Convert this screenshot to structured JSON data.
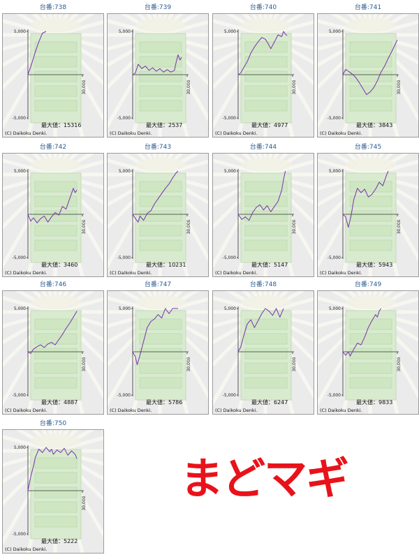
{
  "logo_text": "まどマギ",
  "colors": {
    "line": "#7a2fb0",
    "title": "#2a5b8f",
    "logo": "#e8121b",
    "panel_bg": "#ebebeb"
  },
  "axis": {
    "y_top_label": "5,000",
    "y_bottom_label": "-5,000",
    "x_right_label": "30,000"
  },
  "max_label_prefix": "最大値：",
  "copyright": "(C) Daikoku Denki.",
  "chart_data": [
    {
      "type": "line",
      "title": "台番:738",
      "max_value": 15316,
      "ylim": [
        -5000,
        5000
      ],
      "xlim": [
        0,
        30000
      ],
      "x": [
        0,
        2000,
        4000,
        6000,
        8000,
        10000
      ],
      "y": [
        0,
        1200,
        2600,
        3800,
        4800,
        5000
      ]
    },
    {
      "type": "line",
      "title": "台番:739",
      "max_value": 2537,
      "ylim": [
        -5000,
        5000
      ],
      "xlim": [
        0,
        30000
      ],
      "x": [
        0,
        1500,
        3000,
        5000,
        7000,
        9000,
        11000,
        13000,
        15000,
        17000,
        19000,
        21000,
        23000,
        24000,
        25000,
        26000,
        27000
      ],
      "y": [
        0,
        200,
        1200,
        700,
        1000,
        500,
        800,
        400,
        700,
        300,
        600,
        300,
        500,
        1500,
        2300,
        1700,
        2000
      ]
    },
    {
      "type": "line",
      "title": "台番:740",
      "max_value": 4977,
      "ylim": [
        -5000,
        5000
      ],
      "xlim": [
        0,
        30000
      ],
      "x": [
        0,
        1500,
        3000,
        5000,
        7000,
        9000,
        11000,
        13000,
        15000,
        16500,
        18000,
        20000,
        22000,
        24000,
        25000,
        26000,
        27000
      ],
      "y": [
        0,
        200,
        800,
        1500,
        2500,
        3200,
        3800,
        4300,
        4100,
        3600,
        3000,
        3800,
        4600,
        4400,
        5000,
        4700,
        4500
      ]
    },
    {
      "type": "line",
      "title": "台番:741",
      "max_value": 3843,
      "ylim": [
        -5000,
        5000
      ],
      "xlim": [
        0,
        30000
      ],
      "x": [
        0,
        1500,
        3000,
        5000,
        7000,
        9000,
        11000,
        13000,
        15000,
        17000,
        19000,
        21000,
        23000,
        25000,
        27000,
        29000,
        30000
      ],
      "y": [
        0,
        600,
        400,
        100,
        -300,
        -900,
        -1600,
        -2300,
        -2000,
        -1500,
        -700,
        300,
        1000,
        1900,
        2700,
        3600,
        4000
      ]
    },
    {
      "type": "line",
      "title": "台番:742",
      "max_value": 3460,
      "ylim": [
        -5000,
        5000
      ],
      "xlim": [
        0,
        30000
      ],
      "x": [
        0,
        1500,
        3000,
        5000,
        7000,
        9000,
        11000,
        13000,
        15000,
        17000,
        19000,
        21000,
        23000,
        25000,
        26000,
        27000
      ],
      "y": [
        0,
        -800,
        -400,
        -1000,
        -500,
        -200,
        -900,
        -300,
        200,
        -100,
        900,
        600,
        1800,
        3000,
        2500,
        2800
      ]
    },
    {
      "type": "line",
      "title": "台番:743",
      "max_value": 10231,
      "ylim": [
        -5000,
        5000
      ],
      "xlim": [
        0,
        30000
      ],
      "x": [
        0,
        1500,
        3000,
        4000,
        6000,
        8000,
        10000,
        12000,
        14000,
        16000,
        18000,
        20000,
        22000,
        24000,
        25000
      ],
      "y": [
        0,
        -500,
        -900,
        -200,
        -700,
        100,
        400,
        1200,
        1800,
        2400,
        3000,
        3500,
        4200,
        4800,
        5000
      ]
    },
    {
      "type": "line",
      "title": "台番:744",
      "max_value": 5147,
      "ylim": [
        -5000,
        5000
      ],
      "xlim": [
        0,
        30000
      ],
      "x": [
        0,
        2000,
        4000,
        6000,
        8000,
        10000,
        12000,
        14000,
        16000,
        18000,
        20000,
        22000,
        24000,
        25000,
        26000
      ],
      "y": [
        0,
        -600,
        -300,
        -700,
        200,
        800,
        1100,
        500,
        1000,
        300,
        900,
        1500,
        2800,
        4000,
        5000
      ]
    },
    {
      "type": "line",
      "title": "台番:745",
      "max_value": 5943,
      "ylim": [
        -5000,
        5000
      ],
      "xlim": [
        0,
        30000
      ],
      "x": [
        0,
        1500,
        3000,
        4500,
        6000,
        8000,
        10000,
        12000,
        14000,
        16000,
        18000,
        20000,
        22000,
        24000,
        25000
      ],
      "y": [
        0,
        -300,
        -1500,
        -200,
        1700,
        3000,
        2500,
        2900,
        2000,
        2300,
        2900,
        3700,
        3300,
        4500,
        5000
      ]
    },
    {
      "type": "line",
      "title": "台番:746",
      "max_value": 4887,
      "ylim": [
        -5000,
        5000
      ],
      "xlim": [
        0,
        30000
      ],
      "x": [
        0,
        1500,
        3000,
        5000,
        7000,
        9000,
        11000,
        13000,
        15000,
        17000,
        19000,
        21000,
        23000,
        25000,
        27000
      ],
      "y": [
        0,
        -200,
        300,
        600,
        800,
        500,
        900,
        1100,
        800,
        1400,
        2000,
        2700,
        3300,
        4000,
        4700
      ]
    },
    {
      "type": "line",
      "title": "台番:747",
      "max_value": 5786,
      "ylim": [
        -5000,
        5000
      ],
      "xlim": [
        0,
        30000
      ],
      "x": [
        0,
        1500,
        2500,
        4000,
        6000,
        8000,
        10000,
        12000,
        14000,
        16000,
        18000,
        20000,
        22000,
        25000
      ],
      "y": [
        0,
        -600,
        -1500,
        -400,
        1200,
        2800,
        3500,
        3800,
        4300,
        3900,
        5000,
        4400,
        5000,
        5000
      ]
    },
    {
      "type": "line",
      "title": "台番:748",
      "max_value": 6247,
      "ylim": [
        -5000,
        5000
      ],
      "xlim": [
        0,
        30000
      ],
      "x": [
        0,
        1500,
        3000,
        5000,
        7000,
        9000,
        11000,
        13000,
        15000,
        17000,
        19000,
        21000,
        22000,
        23000,
        24000,
        25000
      ],
      "y": [
        0,
        600,
        1800,
        3200,
        3700,
        2800,
        3600,
        4400,
        5000,
        4700,
        4200,
        5000,
        4500,
        4000,
        4500,
        5000
      ]
    },
    {
      "type": "line",
      "title": "台番:749",
      "max_value": 9833,
      "ylim": [
        -5000,
        5000
      ],
      "xlim": [
        0,
        30000
      ],
      "x": [
        0,
        1500,
        3000,
        4000,
        6000,
        8000,
        10000,
        12000,
        14000,
        16000,
        18000,
        19000,
        20000,
        21000
      ],
      "y": [
        0,
        -400,
        0,
        -500,
        300,
        1000,
        800,
        1700,
        2800,
        3600,
        4300,
        4000,
        4700,
        5000
      ]
    },
    {
      "type": "line",
      "title": "台番:750",
      "max_value": 5222,
      "ylim": [
        -5000,
        5000
      ],
      "xlim": [
        0,
        30000
      ],
      "x": [
        0,
        1500,
        3000,
        4000,
        6000,
        8000,
        10000,
        12000,
        13000,
        14000,
        16000,
        18000,
        20000,
        22000,
        24000,
        26000,
        27000
      ],
      "y": [
        0,
        1600,
        2800,
        3800,
        4800,
        4400,
        5000,
        4500,
        4800,
        4200,
        4700,
        4400,
        4900,
        4100,
        4600,
        4200,
        3700
      ]
    }
  ]
}
